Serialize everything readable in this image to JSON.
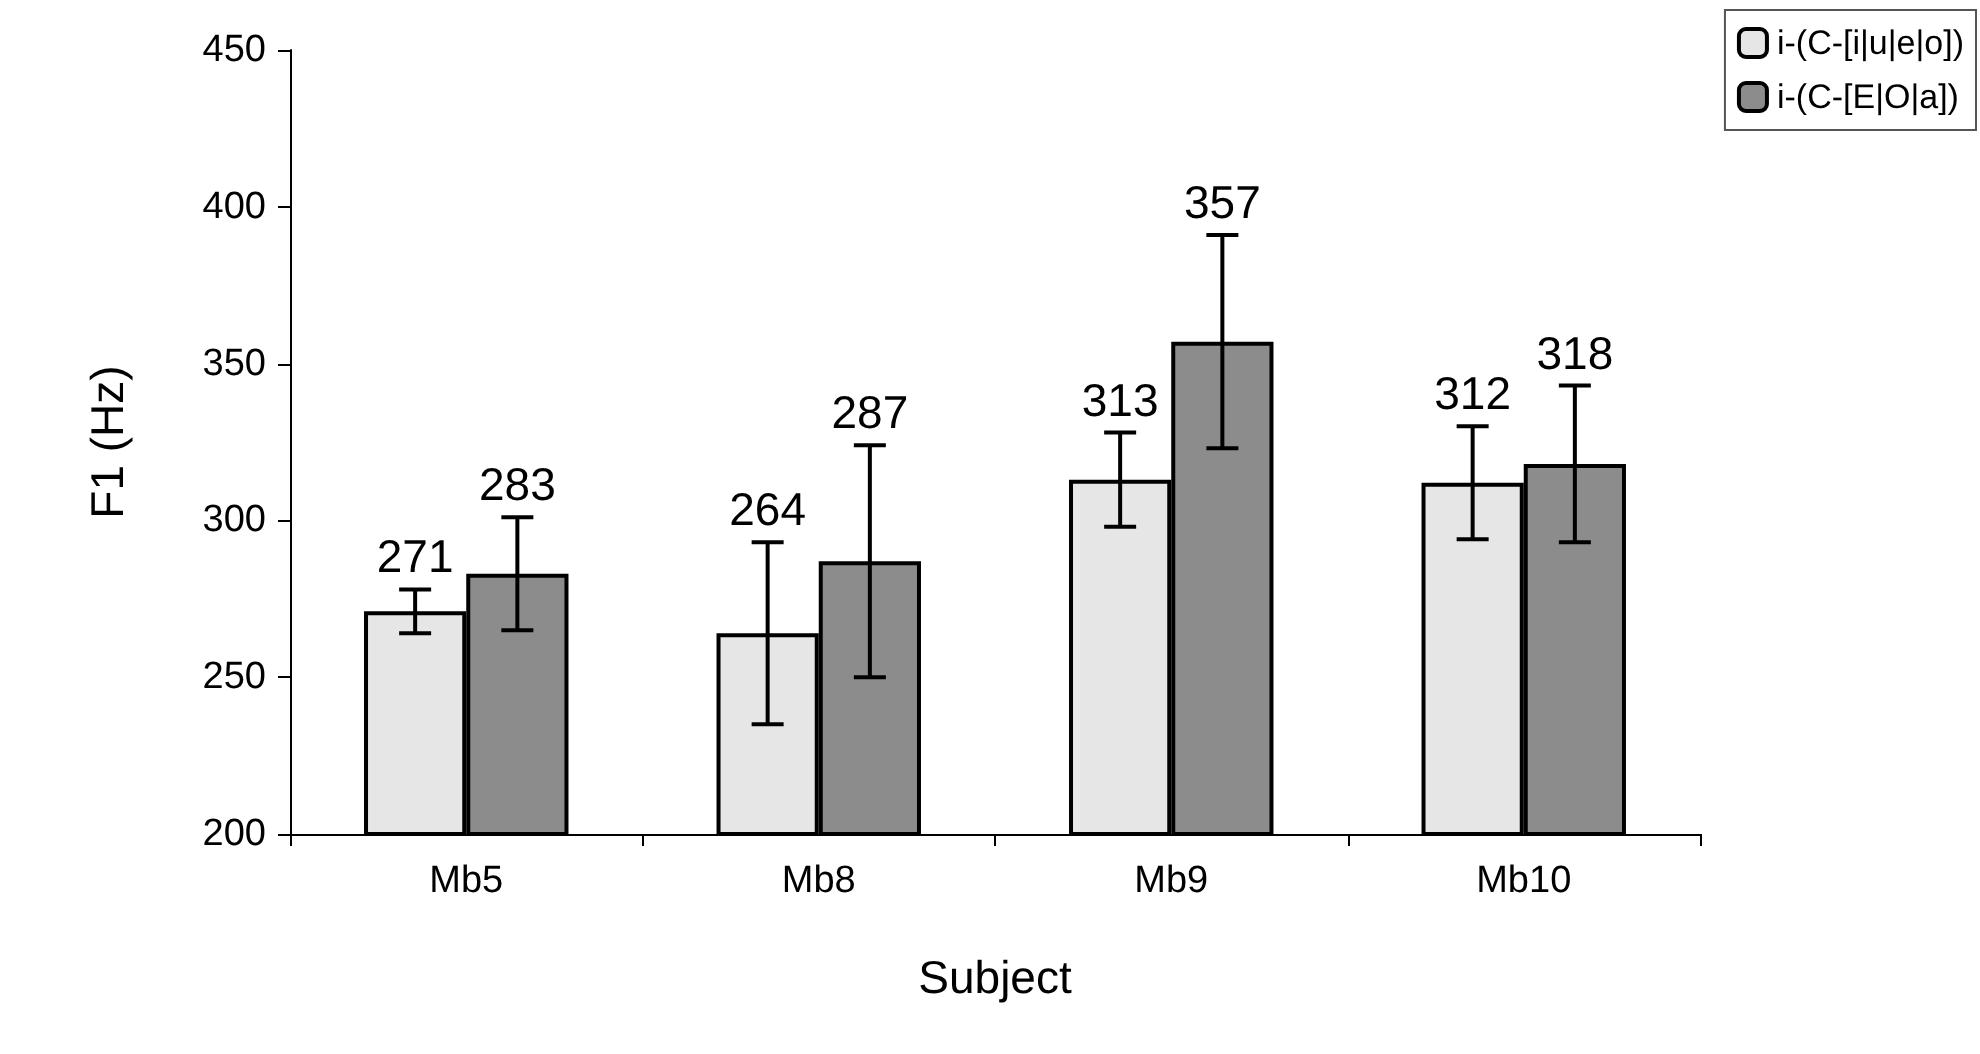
{
  "chart_data": {
    "type": "bar",
    "xlabel": "Subject",
    "ylabel": "F1 (Hz)",
    "categories": [
      "Mb5",
      "Mb8",
      "Mb9",
      "Mb10"
    ],
    "series": [
      {
        "name": "i-(C-[i|u|e|o])",
        "color": "#e6e6e6",
        "values": [
          271,
          264,
          313,
          312
        ],
        "errors": [
          7,
          29,
          15,
          18
        ]
      },
      {
        "name": "i-(C-[E|O|a])",
        "color": "#8c8c8c",
        "values": [
          283,
          287,
          357,
          318
        ],
        "errors": [
          18,
          37,
          34,
          25
        ]
      }
    ],
    "ylim": [
      200,
      450
    ],
    "yticks": [
      200,
      250,
      300,
      350,
      400,
      450
    ],
    "grid": false,
    "legend": "top right",
    "data_labels": true
  }
}
